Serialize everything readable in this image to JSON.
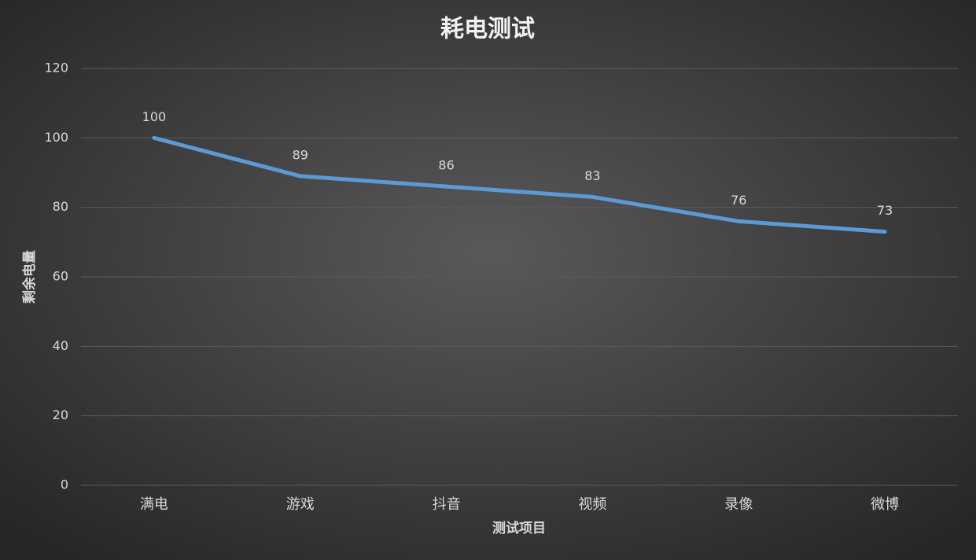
{
  "chart_data": {
    "type": "line",
    "title": "耗电测试",
    "x_label": "测试项目",
    "y_label": "剩余电量",
    "categories": [
      "满电",
      "游戏",
      "抖音",
      "视频",
      "录像",
      "微博"
    ],
    "series": [
      {
        "name": "剩余电量",
        "color": "#5b9bd5",
        "values": [
          100,
          89,
          86,
          83,
          76,
          73
        ]
      }
    ],
    "ylim": [
      0,
      120
    ],
    "yticks": [
      0,
      20,
      40,
      60,
      80,
      100,
      120
    ],
    "grid": true,
    "data_labels": true
  }
}
